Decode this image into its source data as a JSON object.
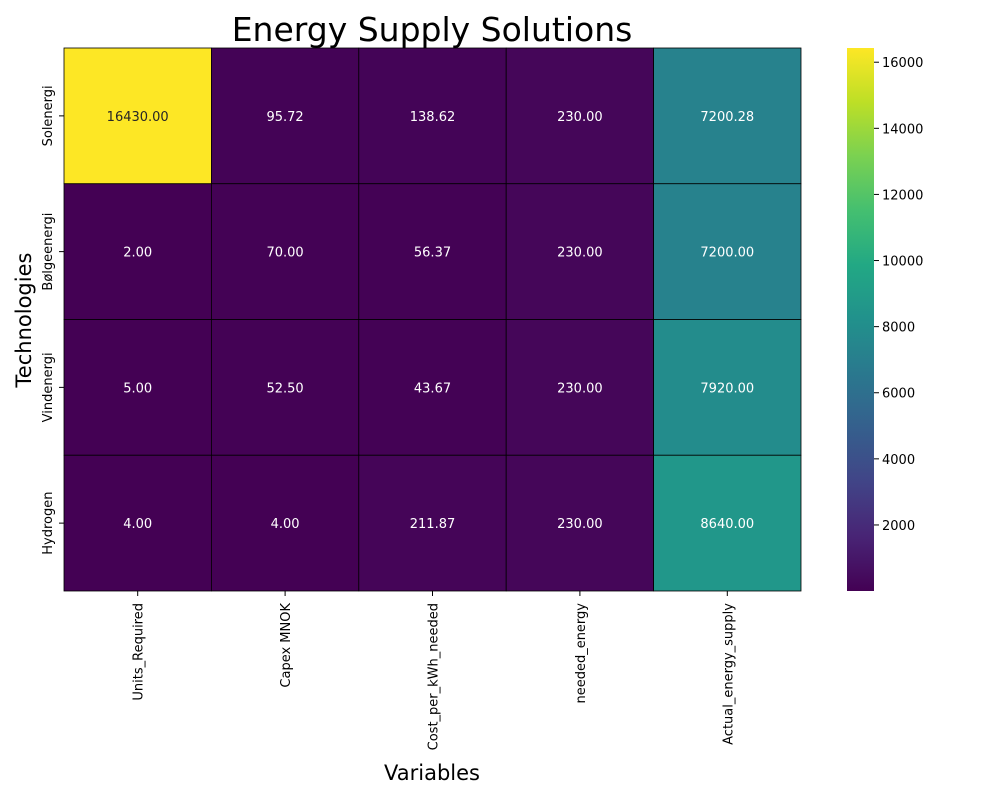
{
  "chart_data": {
    "type": "heatmap",
    "title": "Energy Supply Solutions",
    "xlabel": "Variables",
    "ylabel": "Technologies",
    "x_categories": [
      "Units_Required",
      "Capex MNOK",
      "Cost_per_kWh_needed",
      "needed_energy",
      "Actual_energy_supply"
    ],
    "y_categories": [
      "Solenergi",
      "Bølgeenergi",
      "Vindenergi",
      "Hydrogen"
    ],
    "values": [
      [
        16430.0,
        95.72,
        138.62,
        230.0,
        7200.28
      ],
      [
        2.0,
        70.0,
        56.37,
        230.0,
        7200.0
      ],
      [
        5.0,
        52.5,
        43.67,
        230.0,
        7920.0
      ],
      [
        4.0,
        4.0,
        211.87,
        230.0,
        8640.0
      ]
    ],
    "value_labels": [
      [
        "16430.00",
        "95.72",
        "138.62",
        "230.00",
        "7200.28"
      ],
      [
        "2.00",
        "70.00",
        "56.37",
        "230.00",
        "7200.00"
      ],
      [
        "5.00",
        "52.50",
        "43.67",
        "230.00",
        "7920.00"
      ],
      [
        "4.00",
        "4.00",
        "211.87",
        "230.00",
        "8640.00"
      ]
    ],
    "colormap": "viridis",
    "colorbar": {
      "range": [
        2,
        16430
      ],
      "ticks": [
        2000,
        4000,
        6000,
        8000,
        10000,
        12000,
        14000,
        16000
      ],
      "tick_labels": [
        "2000",
        "4000",
        "6000",
        "8000",
        "10000",
        "12000",
        "14000",
        "16000"
      ]
    },
    "grid": true,
    "colors": {
      "cell_border": "#000000",
      "text_dark": "#262626",
      "text_light": "#ffffff"
    }
  }
}
